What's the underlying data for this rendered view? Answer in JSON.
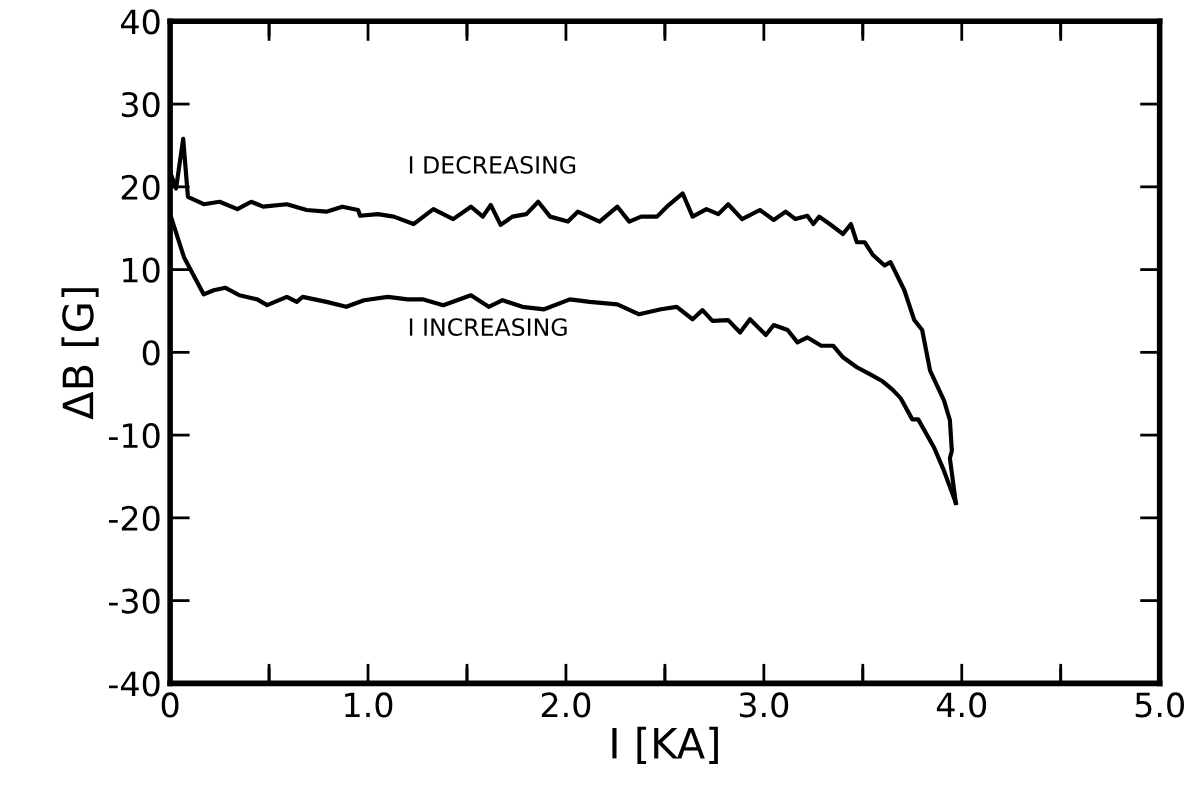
{
  "chart_data": {
    "type": "line",
    "xlabel": "I [KA]",
    "ylabel": "ΔB [G]",
    "xlim": [
      0,
      5.0
    ],
    "ylim": [
      -40,
      40
    ],
    "xticks": [
      0,
      {
        "value": 0.5,
        "label": null
      },
      {
        "value": 1.0,
        "label": "1.0"
      },
      {
        "value": 1.5,
        "label": null
      },
      {
        "value": 2.0,
        "label": "2.0"
      },
      {
        "value": 2.5,
        "label": null
      },
      {
        "value": 3.0,
        "label": "3.0"
      },
      {
        "value": 3.5,
        "label": null
      },
      {
        "value": 4.0,
        "label": "4.0"
      },
      {
        "value": 4.5,
        "label": null
      },
      {
        "value": 5.0,
        "label": "5.0"
      }
    ],
    "yticks": [
      {
        "value": -40,
        "label": "-40"
      },
      {
        "value": -30,
        "label": "-30"
      },
      {
        "value": -20,
        "label": "-20"
      },
      {
        "value": -10,
        "label": "-10"
      },
      0,
      10,
      20,
      30,
      40
    ],
    "grid": false,
    "legend": false,
    "marker": "none",
    "line_style": "solid",
    "series": [
      {
        "name": "I DECREASING",
        "color": "#000000",
        "x": [
          0,
          0.03,
          0.066,
          0.09,
          0.17,
          0.25,
          0.34,
          0.41,
          0.47,
          0.59,
          0.69,
          0.79,
          0.87,
          0.95,
          0.96,
          1.05,
          1.13,
          1.23,
          1.33,
          1.43,
          1.52,
          1.58,
          1.62,
          1.67,
          1.73,
          1.8,
          1.86,
          1.92,
          2.01,
          2.06,
          2.17,
          2.26,
          2.32,
          2.38,
          2.46,
          2.51,
          2.59,
          2.64,
          2.71,
          2.77,
          2.82,
          2.89,
          2.98,
          3.05,
          3.11,
          3.16,
          3.22,
          3.25,
          3.28,
          3.35,
          3.4,
          3.44,
          3.47,
          3.51,
          3.55,
          3.61,
          3.64,
          3.71,
          3.76,
          3.8,
          3.84,
          3.91,
          3.94,
          3.95,
          3.94,
          3.97
        ],
        "values": [
          21.8,
          19.8,
          25.8,
          18.8,
          17.9,
          18.2,
          17.3,
          18.2,
          17.6,
          17.9,
          17.2,
          17.0,
          17.6,
          17.2,
          16.5,
          16.7,
          16.4,
          15.5,
          17.3,
          16.1,
          17.6,
          16.4,
          17.8,
          15.4,
          16.4,
          16.7,
          18.2,
          16.4,
          15.8,
          17.0,
          15.8,
          17.6,
          15.8,
          16.4,
          16.4,
          17.6,
          19.2,
          16.4,
          17.3,
          16.7,
          17.9,
          16.1,
          17.2,
          16.0,
          17.0,
          16.1,
          16.5,
          15.5,
          16.4,
          15.2,
          14.3,
          15.5,
          13.3,
          13.3,
          11.8,
          10.5,
          10.9,
          7.5,
          3.9,
          2.7,
          -2.2,
          -5.8,
          -8.2,
          -11.9,
          -12.8,
          -18.2
        ]
      },
      {
        "name": "I INCREASING",
        "color": "#000000",
        "x": [
          0,
          0.07,
          0.17,
          0.22,
          0.28,
          0.35,
          0.44,
          0.49,
          0.59,
          0.64,
          0.67,
          0.79,
          0.89,
          0.98,
          1.1,
          1.2,
          1.28,
          1.38,
          1.52,
          1.61,
          1.68,
          1.78,
          1.89,
          2.02,
          2.12,
          2.26,
          2.37,
          2.48,
          2.56,
          2.64,
          2.69,
          2.74,
          2.82,
          2.88,
          2.93,
          3.01,
          3.05,
          3.12,
          3.17,
          3.22,
          3.29,
          3.35,
          3.4,
          3.47,
          3.54,
          3.6,
          3.65,
          3.69,
          3.75,
          3.78,
          3.86,
          3.91,
          3.97
        ],
        "values": [
          16.7,
          11.5,
          7.0,
          7.5,
          7.8,
          6.9,
          6.4,
          5.7,
          6.7,
          6.1,
          6.7,
          6.1,
          5.5,
          6.3,
          6.7,
          6.4,
          6.4,
          5.7,
          6.9,
          5.5,
          6.3,
          5.5,
          5.2,
          6.4,
          6.1,
          5.8,
          4.6,
          5.2,
          5.5,
          4.0,
          5.1,
          3.8,
          3.9,
          2.4,
          4.0,
          2.1,
          3.3,
          2.7,
          1.2,
          1.8,
          0.8,
          0.8,
          -0.6,
          -1.8,
          -2.7,
          -3.5,
          -4.5,
          -5.5,
          -8.1,
          -8.1,
          -11.5,
          -14.3,
          -18.2
        ]
      }
    ]
  }
}
